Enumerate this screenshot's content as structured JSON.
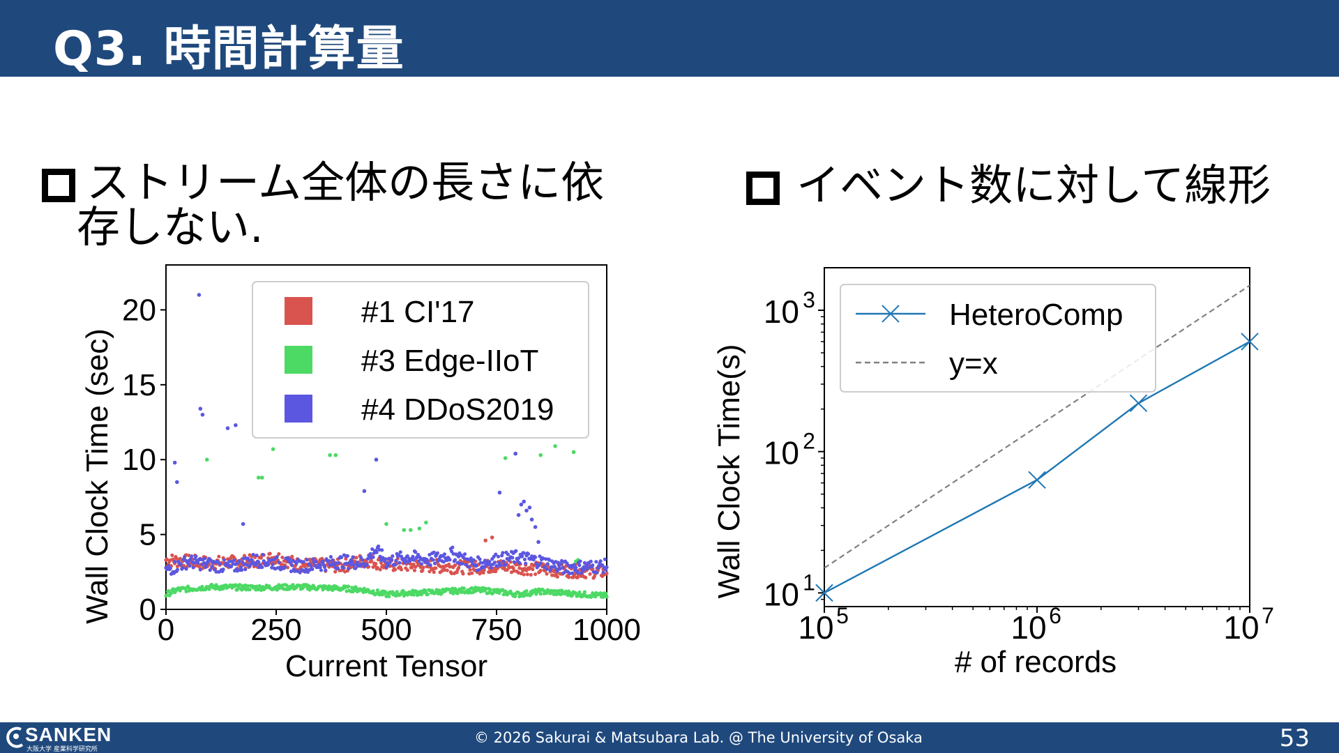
{
  "slide": {
    "title": "Q3. 時間計算量",
    "left_bullet_line1": "ストリーム全体の長さに依",
    "left_bullet_line2": "存しない.",
    "right_bullet": "イベント数に対して線形",
    "page_number": "53",
    "copyright": "© 2026 Sakurai & Matsubara Lab. @ The University of Osaka",
    "logo_text": "SANKEN",
    "logo_subtext": "大阪大学 産業科学研究所"
  },
  "chart_data": [
    {
      "type": "scatter",
      "xlabel": "Current Tensor",
      "ylabel": "Wall Clock Time (sec)",
      "xlim": [
        0,
        1000
      ],
      "ylim": [
        0,
        23
      ],
      "xticks": [
        0,
        250,
        500,
        750,
        1000
      ],
      "yticks": [
        0,
        5,
        10,
        15,
        20
      ],
      "legend_position": "top-right",
      "series": [
        {
          "name": "#1 CI'17",
          "color": "#d9534f",
          "baseline": [
            [
              0,
              3.3
            ],
            [
              100,
              3.1
            ],
            [
              200,
              3.2
            ],
            [
              250,
              3.5
            ],
            [
              300,
              3.0
            ],
            [
              400,
              2.9
            ],
            [
              450,
              3.3
            ],
            [
              500,
              3.0
            ],
            [
              600,
              2.9
            ],
            [
              700,
              2.8
            ],
            [
              750,
              2.9
            ],
            [
              800,
              2.8
            ],
            [
              900,
              2.6
            ],
            [
              1000,
              2.5
            ]
          ],
          "outliers": [
            [
              725,
              4.6
            ],
            [
              740,
              4.8
            ],
            [
              800,
              3.0
            ]
          ]
        },
        {
          "name": "#3 Edge-IIoT",
          "color": "#4cd964",
          "baseline": [
            [
              0,
              1.0
            ],
            [
              25,
              1.3
            ],
            [
              100,
              1.5
            ],
            [
              200,
              1.45
            ],
            [
              300,
              1.5
            ],
            [
              400,
              1.4
            ],
            [
              450,
              1.3
            ],
            [
              500,
              1.0
            ],
            [
              550,
              1.1
            ],
            [
              600,
              1.15
            ],
            [
              700,
              1.3
            ],
            [
              750,
              1.2
            ],
            [
              800,
              1.0
            ],
            [
              850,
              1.2
            ],
            [
              900,
              1.1
            ],
            [
              1000,
              0.9
            ]
          ],
          "outliers": [
            [
              93,
              10.0
            ],
            [
              210,
              8.8
            ],
            [
              218,
              8.8
            ],
            [
              243,
              10.7
            ],
            [
              372,
              10.3
            ],
            [
              385,
              10.3
            ],
            [
              500,
              5.7
            ],
            [
              540,
              5.3
            ],
            [
              555,
              5.3
            ],
            [
              575,
              5.4
            ],
            [
              590,
              5.8
            ],
            [
              770,
              10.1
            ],
            [
              793,
              10.4
            ],
            [
              850,
              10.3
            ],
            [
              883,
              10.9
            ],
            [
              925,
              10.5
            ],
            [
              930,
              3.2
            ],
            [
              935,
              3.3
            ]
          ]
        },
        {
          "name": "#4 DDoS2019",
          "color": "#5b57e0",
          "baseline": [
            [
              0,
              2.6
            ],
            [
              50,
              3.2
            ],
            [
              100,
              3.0
            ],
            [
              150,
              2.8
            ],
            [
              200,
              3.3
            ],
            [
              250,
              3.1
            ],
            [
              300,
              2.9
            ],
            [
              350,
              3.0
            ],
            [
              400,
              3.2
            ],
            [
              450,
              3.1
            ],
            [
              475,
              4.0
            ],
            [
              500,
              3.2
            ],
            [
              550,
              3.5
            ],
            [
              600,
              3.3
            ],
            [
              650,
              3.7
            ],
            [
              700,
              3.0
            ],
            [
              750,
              3.3
            ],
            [
              800,
              3.5
            ],
            [
              850,
              3.2
            ],
            [
              900,
              2.8
            ],
            [
              1000,
              2.9
            ]
          ],
          "outliers": [
            [
              20,
              9.8
            ],
            [
              25,
              8.5
            ],
            [
              75,
              21.0
            ],
            [
              78,
              13.4
            ],
            [
              83,
              13.0
            ],
            [
              140,
              12.1
            ],
            [
              158,
              12.3
            ],
            [
              175,
              5.7
            ],
            [
              450,
              7.9
            ],
            [
              477,
              10.0
            ],
            [
              757,
              7.8
            ],
            [
              793,
              10.4
            ],
            [
              800,
              6.3
            ],
            [
              806,
              7.0
            ],
            [
              812,
              7.2
            ],
            [
              818,
              6.6
            ],
            [
              825,
              6.8
            ],
            [
              830,
              6.0
            ],
            [
              838,
              5.5
            ],
            [
              845,
              4.5
            ]
          ]
        }
      ]
    },
    {
      "type": "line",
      "xlabel": "# of records",
      "ylabel": "Wall Clock Time(s)",
      "x_scale": "log",
      "y_scale": "log",
      "xlim": [
        100000,
        10000000
      ],
      "ylim": [
        8,
        2000
      ],
      "xticks": [
        100000,
        1000000,
        10000000
      ],
      "yticks": [
        10,
        100,
        1000
      ],
      "legend_position": "top-left",
      "series": [
        {
          "name": "HeteroComp",
          "color": "#1f77b4",
          "style": "solid",
          "marker": "x",
          "x": [
            100000,
            1000000,
            3000000,
            10000000
          ],
          "y": [
            10,
            63,
            220,
            600
          ]
        },
        {
          "name": "y=x",
          "color": "#808080",
          "style": "dashed",
          "marker": "none",
          "x": [
            100000,
            10000000
          ],
          "y": [
            15,
            1500
          ]
        }
      ]
    }
  ]
}
